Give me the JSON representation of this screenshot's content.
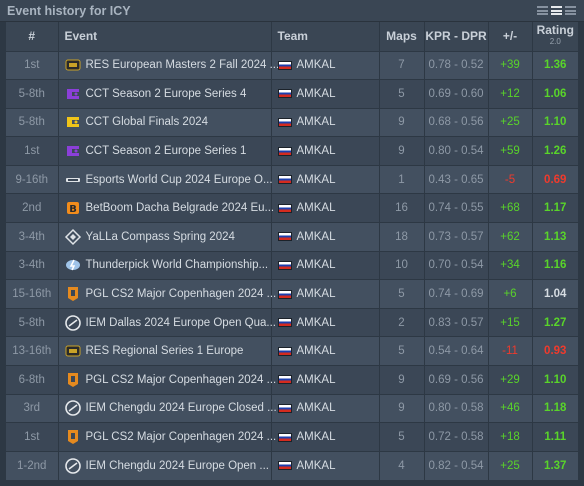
{
  "header": {
    "title": "Event history for ICY"
  },
  "columns": {
    "num": "#",
    "event": "Event",
    "team": "Team",
    "maps": "Maps",
    "kpr_dpr": "KPR - DPR",
    "diff": "+/-",
    "rating": "Rating",
    "rating_version": "2.0"
  },
  "rows": [
    {
      "place": "1st",
      "event": "RES European Masters 2 Fall 2024 ...",
      "logo": "res-logo",
      "team": "AMKAL",
      "maps": "7",
      "kpr_dpr": "0.78 - 0.52",
      "diff": "+39",
      "rating": "1.36",
      "diff_class": "pos",
      "rating_class": "pos"
    },
    {
      "place": "5-8th",
      "event": "CCT Season 2 Europe Series 4",
      "logo": "cct-purple-logo",
      "team": "AMKAL",
      "maps": "5",
      "kpr_dpr": "0.69 - 0.60",
      "diff": "+12",
      "rating": "1.06",
      "diff_class": "pos",
      "rating_class": "pos"
    },
    {
      "place": "5-8th",
      "event": "CCT Global Finals 2024",
      "logo": "cct-yellow-logo",
      "team": "AMKAL",
      "maps": "9",
      "kpr_dpr": "0.68 - 0.56",
      "diff": "+25",
      "rating": "1.10",
      "diff_class": "pos",
      "rating_class": "pos"
    },
    {
      "place": "1st",
      "event": "CCT Season 2 Europe Series 1",
      "logo": "cct-purple-logo",
      "team": "AMKAL",
      "maps": "9",
      "kpr_dpr": "0.80 - 0.54",
      "diff": "+59",
      "rating": "1.26",
      "diff_class": "pos",
      "rating_class": "pos"
    },
    {
      "place": "9-16th",
      "event": "Esports World Cup 2024 Europe O...",
      "logo": "ewc-logo",
      "team": "AMKAL",
      "maps": "1",
      "kpr_dpr": "0.43 - 0.65",
      "diff": "-5",
      "rating": "0.69",
      "diff_class": "neg",
      "rating_class": "neg"
    },
    {
      "place": "2nd",
      "event": "BetBoom Dacha Belgrade 2024 Eu...",
      "logo": "betboom-logo",
      "team": "AMKAL",
      "maps": "16",
      "kpr_dpr": "0.74 - 0.55",
      "diff": "+68",
      "rating": "1.17",
      "diff_class": "pos",
      "rating_class": "pos"
    },
    {
      "place": "3-4th",
      "event": "YaLLa Compass Spring 2024",
      "logo": "yalla-logo",
      "team": "AMKAL",
      "maps": "18",
      "kpr_dpr": "0.73 - 0.57",
      "diff": "+62",
      "rating": "1.13",
      "diff_class": "pos",
      "rating_class": "pos"
    },
    {
      "place": "3-4th",
      "event": "Thunderpick World Championship...",
      "logo": "thunderpick-logo",
      "team": "AMKAL",
      "maps": "10",
      "kpr_dpr": "0.70 - 0.54",
      "diff": "+34",
      "rating": "1.16",
      "diff_class": "pos",
      "rating_class": "pos"
    },
    {
      "place": "15-16th",
      "event": "PGL CS2 Major Copenhagen 2024 ...",
      "logo": "pgl-logo",
      "team": "AMKAL",
      "maps": "5",
      "kpr_dpr": "0.74 - 0.69",
      "diff": "+6",
      "rating": "1.04",
      "diff_class": "pos",
      "rating_class": "neu"
    },
    {
      "place": "5-8th",
      "event": "IEM Dallas 2024 Europe Open Qua...",
      "logo": "iem-logo",
      "team": "AMKAL",
      "maps": "2",
      "kpr_dpr": "0.83 - 0.57",
      "diff": "+15",
      "rating": "1.27",
      "diff_class": "pos",
      "rating_class": "pos"
    },
    {
      "place": "13-16th",
      "event": "RES Regional Series 1 Europe",
      "logo": "res-logo",
      "team": "AMKAL",
      "maps": "5",
      "kpr_dpr": "0.54 - 0.64",
      "diff": "-11",
      "rating": "0.93",
      "diff_class": "neg",
      "rating_class": "neg"
    },
    {
      "place": "6-8th",
      "event": "PGL CS2 Major Copenhagen 2024 ...",
      "logo": "pgl-logo",
      "team": "AMKAL",
      "maps": "9",
      "kpr_dpr": "0.69 - 0.56",
      "diff": "+29",
      "rating": "1.10",
      "diff_class": "pos",
      "rating_class": "pos"
    },
    {
      "place": "3rd",
      "event": "IEM Chengdu 2024 Europe Closed ...",
      "logo": "iem-logo",
      "team": "AMKAL",
      "maps": "9",
      "kpr_dpr": "0.80 - 0.58",
      "diff": "+46",
      "rating": "1.18",
      "diff_class": "pos",
      "rating_class": "pos"
    },
    {
      "place": "1st",
      "event": "PGL CS2 Major Copenhagen 2024 ...",
      "logo": "pgl-logo",
      "team": "AMKAL",
      "maps": "5",
      "kpr_dpr": "0.72 - 0.58",
      "diff": "+18",
      "rating": "1.11",
      "diff_class": "pos",
      "rating_class": "pos"
    },
    {
      "place": "1-2nd",
      "event": "IEM Chengdu 2024 Europe Open ...",
      "logo": "iem-logo",
      "team": "AMKAL",
      "maps": "4",
      "kpr_dpr": "0.82 - 0.54",
      "diff": "+25",
      "rating": "1.37",
      "diff_class": "pos",
      "rating_class": "pos"
    }
  ],
  "colors": {
    "positive": "#59d42a",
    "negative": "#f03a2c",
    "neutral": "#d6dce2"
  }
}
